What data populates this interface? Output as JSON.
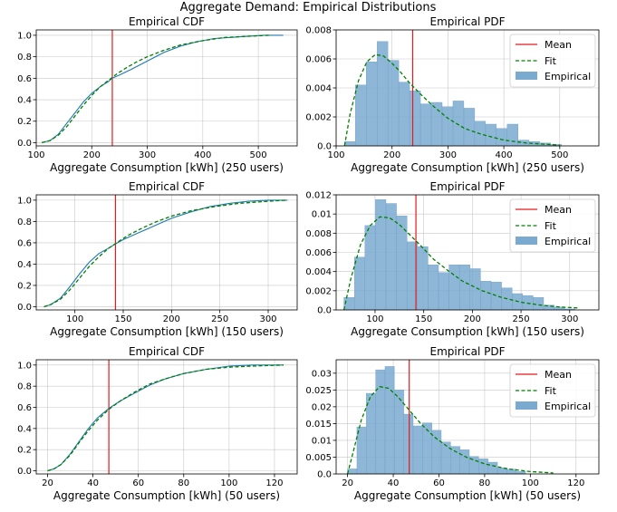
{
  "figure": {
    "title": "Aggregate Demand: Empirical Distributions"
  },
  "colors": {
    "cdf": "#1f77b4",
    "fit": "#008000",
    "mean": "#e41a1c",
    "hist": "#7aaad0",
    "grid": "#b0b0b0"
  },
  "legend": {
    "mean": "Mean",
    "fit": "Fit",
    "empirical": "Empirical"
  },
  "chart_data": [
    {
      "type": "line",
      "title": "Empirical CDF",
      "xlabel": "Aggregate Consumption [kWh] (250 users)",
      "ylabel": "",
      "xlim": [
        100,
        570
      ],
      "ylim": [
        -0.03,
        1.05
      ],
      "xticks": [
        100,
        200,
        300,
        400,
        500
      ],
      "yticks": [
        0,
        0.2,
        0.4,
        0.6,
        0.8,
        1.0
      ],
      "ytick_labels": [
        "0.0",
        "0.2",
        "0.4",
        "0.6",
        "0.8",
        "1.0"
      ],
      "mean": 237,
      "series": [
        {
          "role": "cdf",
          "x": [
            110,
            125,
            140,
            155,
            170,
            185,
            200,
            215,
            230,
            237,
            250,
            270,
            300,
            330,
            360,
            390,
            420,
            450,
            480,
            510,
            545
          ],
          "y": [
            0,
            0.02,
            0.08,
            0.18,
            0.28,
            0.38,
            0.46,
            0.52,
            0.57,
            0.6,
            0.63,
            0.68,
            0.76,
            0.84,
            0.9,
            0.94,
            0.97,
            0.98,
            0.99,
            1.0,
            1.0
          ]
        },
        {
          "role": "fit",
          "x": [
            110,
            125,
            140,
            155,
            170,
            185,
            200,
            215,
            230,
            245,
            260,
            280,
            300,
            330,
            360,
            400,
            440,
            480,
            520
          ],
          "y": [
            0,
            0.02,
            0.07,
            0.15,
            0.25,
            0.35,
            0.44,
            0.52,
            0.58,
            0.64,
            0.69,
            0.75,
            0.8,
            0.86,
            0.91,
            0.95,
            0.98,
            0.99,
            1.0
          ]
        }
      ]
    },
    {
      "type": "bar",
      "title": "Empirical PDF",
      "xlabel": "Aggregate Consumption [kWh] (250 users)",
      "ylabel": "",
      "xlim": [
        100,
        570
      ],
      "ylim": [
        0,
        0.008
      ],
      "xticks": [
        100,
        200,
        300,
        400,
        500
      ],
      "yticks": [
        0,
        0.002,
        0.004,
        0.006,
        0.008
      ],
      "ytick_labels": [
        "0.0",
        "0.002",
        "0.004",
        "0.006",
        "0.008"
      ],
      "legend": "top-right",
      "mean": 237,
      "bin_start": 115,
      "bin_width": 19.4,
      "values": [
        0.0003,
        0.0042,
        0.0058,
        0.0072,
        0.0059,
        0.0044,
        0.0038,
        0.0029,
        0.003,
        0.0027,
        0.0031,
        0.0026,
        0.0017,
        0.0015,
        0.0012,
        0.0015,
        0.0004,
        0.0003,
        0.0002,
        0.0001
      ],
      "fit": {
        "x": [
          115,
          125,
          140,
          155,
          170,
          185,
          200,
          215,
          230,
          250,
          275,
          300,
          330,
          360,
          400,
          440,
          480,
          500
        ],
        "y": [
          0,
          0.0022,
          0.0045,
          0.0058,
          0.0063,
          0.0062,
          0.0057,
          0.0051,
          0.0044,
          0.0036,
          0.0027,
          0.0019,
          0.0012,
          0.0008,
          0.0004,
          0.0002,
          0.0001,
          5e-05
        ]
      }
    },
    {
      "type": "line",
      "title": "Empirical CDF",
      "xlabel": "Aggregate Consumption [kWh] (150 users)",
      "ylabel": "",
      "xlim": [
        60,
        330
      ],
      "ylim": [
        -0.03,
        1.05
      ],
      "xticks": [
        100,
        150,
        200,
        250,
        300
      ],
      "yticks": [
        0,
        0.2,
        0.4,
        0.6,
        0.8,
        1.0
      ],
      "ytick_labels": [
        "0.0",
        "0.2",
        "0.4",
        "0.6",
        "0.8",
        "1.0"
      ],
      "mean": 142,
      "series": [
        {
          "role": "cdf",
          "x": [
            68,
            75,
            85,
            95,
            105,
            115,
            125,
            135,
            142,
            150,
            165,
            180,
            200,
            220,
            240,
            260,
            280,
            300,
            320
          ],
          "y": [
            0,
            0.02,
            0.08,
            0.19,
            0.31,
            0.42,
            0.5,
            0.55,
            0.59,
            0.63,
            0.69,
            0.75,
            0.83,
            0.89,
            0.94,
            0.97,
            0.99,
            1.0,
            1.0
          ]
        },
        {
          "role": "fit",
          "x": [
            68,
            75,
            85,
            95,
            105,
            115,
            125,
            135,
            145,
            155,
            170,
            185,
            200,
            220,
            245,
            270,
            300,
            320
          ],
          "y": [
            0,
            0.02,
            0.07,
            0.16,
            0.27,
            0.38,
            0.47,
            0.55,
            0.61,
            0.67,
            0.74,
            0.8,
            0.85,
            0.9,
            0.94,
            0.97,
            0.99,
            1.0
          ]
        }
      ]
    },
    {
      "type": "bar",
      "title": "Empirical PDF",
      "xlabel": "Aggregate Consumption [kWh] (150 users)",
      "ylabel": "",
      "xlim": [
        60,
        330
      ],
      "ylim": [
        0,
        0.012
      ],
      "xticks": [
        100,
        150,
        200,
        250,
        300
      ],
      "yticks": [
        0,
        0.002,
        0.004,
        0.006,
        0.008,
        0.01,
        0.012
      ],
      "ytick_labels": [
        "0.0",
        "0.002",
        "0.004",
        "0.006",
        "0.008",
        "0.01",
        "0.012"
      ],
      "legend": "top-right",
      "mean": 142,
      "bin_start": 68,
      "bin_width": 10.8,
      "values": [
        0.0013,
        0.0055,
        0.0088,
        0.0115,
        0.0111,
        0.0098,
        0.0071,
        0.0066,
        0.0047,
        0.0039,
        0.0047,
        0.0047,
        0.0043,
        0.003,
        0.0029,
        0.0023,
        0.0017,
        0.0015,
        0.0013,
        0.0005,
        0.0003,
        0.0001
      ],
      "fit": {
        "x": [
          68,
          75,
          85,
          95,
          105,
          115,
          125,
          135,
          145,
          160,
          175,
          190,
          210,
          230,
          250,
          270,
          290,
          310
        ],
        "y": [
          0,
          0.0032,
          0.0068,
          0.0088,
          0.0097,
          0.0096,
          0.0089,
          0.0079,
          0.0069,
          0.0053,
          0.0041,
          0.003,
          0.002,
          0.0013,
          0.0008,
          0.0005,
          0.0003,
          0.0002
        ]
      }
    },
    {
      "type": "line",
      "title": "Empirical CDF",
      "xlabel": "Aggregate Consumption [kWh] (50 users)",
      "ylabel": "",
      "xlim": [
        15,
        130
      ],
      "ylim": [
        -0.03,
        1.05
      ],
      "xticks": [
        20,
        40,
        60,
        80,
        100,
        120
      ],
      "yticks": [
        0,
        0.2,
        0.4,
        0.6,
        0.8,
        1.0
      ],
      "ytick_labels": [
        "0.0",
        "0.2",
        "0.4",
        "0.6",
        "0.8",
        "1.0"
      ],
      "mean": 47,
      "series": [
        {
          "role": "cdf",
          "x": [
            20,
            23,
            26,
            30,
            34,
            38,
            42,
            47,
            52,
            58,
            65,
            72,
            80,
            90,
            100,
            110,
            124
          ],
          "y": [
            0,
            0.02,
            0.06,
            0.16,
            0.28,
            0.4,
            0.5,
            0.59,
            0.66,
            0.73,
            0.81,
            0.87,
            0.92,
            0.96,
            0.99,
            1.0,
            1.0
          ]
        },
        {
          "role": "fit",
          "x": [
            20,
            23,
            26,
            30,
            34,
            38,
            42,
            47,
            52,
            58,
            65,
            72,
            80,
            90,
            100,
            110,
            124
          ],
          "y": [
            0,
            0.02,
            0.06,
            0.15,
            0.27,
            0.38,
            0.48,
            0.58,
            0.66,
            0.74,
            0.82,
            0.87,
            0.92,
            0.96,
            0.98,
            0.99,
            1.0
          ]
        }
      ]
    },
    {
      "type": "bar",
      "title": "Empirical PDF",
      "xlabel": "Aggregate Consumption [kWh] (50 users)",
      "ylabel": "",
      "xlim": [
        15,
        130
      ],
      "ylim": [
        0,
        0.034
      ],
      "xticks": [
        20,
        40,
        60,
        80,
        100,
        120
      ],
      "yticks": [
        0,
        0.005,
        0.01,
        0.015,
        0.02,
        0.025,
        0.03
      ],
      "ytick_labels": [
        "0.0",
        "0.005",
        "0.01",
        "0.015",
        "0.02",
        "0.025",
        "0.03"
      ],
      "legend": "top-right",
      "mean": 47,
      "bin_start": 20,
      "bin_width": 4.1,
      "values": [
        0.0015,
        0.014,
        0.024,
        0.031,
        0.032,
        0.025,
        0.0178,
        0.0143,
        0.0152,
        0.013,
        0.0095,
        0.0082,
        0.0072,
        0.0052,
        0.0045,
        0.0035,
        0.0018,
        0.0014,
        0.0007
      ],
      "fit": {
        "x": [
          20,
          23,
          26,
          30,
          34,
          38,
          42,
          47,
          52,
          58,
          65,
          72,
          80,
          90,
          100,
          110
        ],
        "y": [
          0,
          0.008,
          0.016,
          0.023,
          0.026,
          0.0255,
          0.023,
          0.019,
          0.015,
          0.011,
          0.0075,
          0.005,
          0.003,
          0.0015,
          0.0007,
          0.0003
        ]
      }
    }
  ]
}
